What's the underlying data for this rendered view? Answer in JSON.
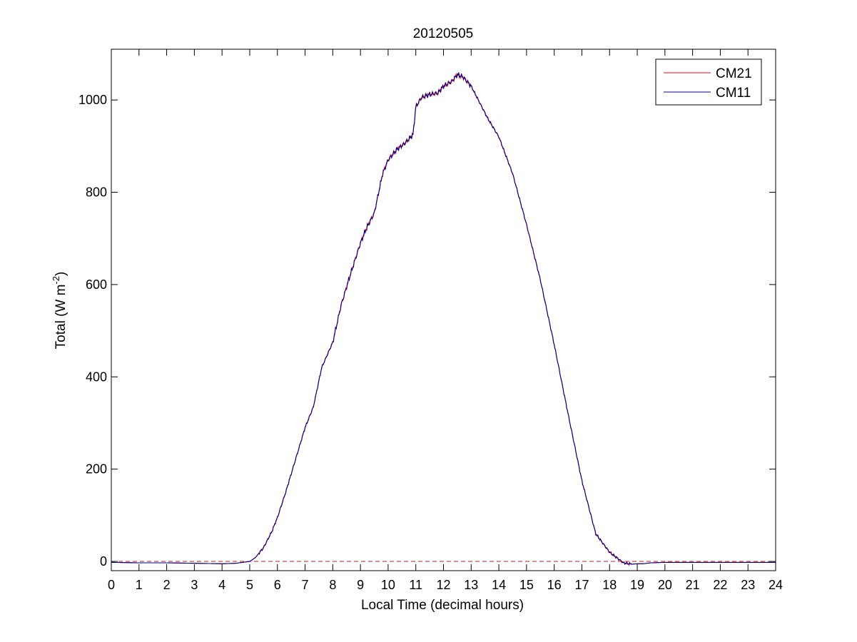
{
  "chart_data": {
    "type": "line",
    "title": "20120505",
    "xlabel": "Local Time (decimal hours)",
    "ylabel": {
      "main": "Total (W m",
      "sup": "-2",
      "close": ")"
    },
    "xlim": [
      0,
      24
    ],
    "ylim": [
      -20,
      1110
    ],
    "xticks": [
      0,
      1,
      2,
      3,
      4,
      5,
      6,
      7,
      8,
      9,
      10,
      11,
      12,
      13,
      14,
      15,
      16,
      17,
      18,
      19,
      20,
      21,
      22,
      23,
      24
    ],
    "yticks": [
      0,
      200,
      400,
      600,
      800,
      1000
    ],
    "grid": false,
    "legend_position": "top-right",
    "zero_line": {
      "y": 0,
      "style": "dashed",
      "color": "#b22222"
    },
    "series": [
      {
        "name": "CM21",
        "color": "#ff0000",
        "x": [
          0,
          1,
          2,
          3,
          4,
          4.5,
          5,
          5.2,
          5.5,
          5.8,
          6,
          6.3,
          6.6,
          7,
          7.3,
          7.6,
          8,
          8.3,
          8.6,
          9,
          9.2,
          9.5,
          9.8,
          10,
          10.3,
          10.6,
          10.9,
          11,
          11.2,
          11.5,
          11.8,
          12,
          12.3,
          12.5,
          12.7,
          13,
          13.3,
          13.6,
          14,
          14.5,
          15,
          15.5,
          16,
          16.5,
          17,
          17.5,
          18,
          18.5,
          18.8,
          19,
          19.2,
          19.5,
          20,
          21,
          22,
          23,
          24
        ],
        "y": [
          -2,
          -3,
          -3,
          -4,
          -5,
          -4,
          0,
          8,
          30,
          65,
          95,
          150,
          210,
          290,
          335,
          420,
          475,
          555,
          615,
          690,
          720,
          755,
          840,
          870,
          892,
          906,
          925,
          985,
          1005,
          1012,
          1015,
          1030,
          1040,
          1055,
          1050,
          1030,
          995,
          960,
          920,
          840,
          730,
          610,
          470,
          320,
          175,
          60,
          20,
          -3,
          -6,
          -5,
          -5,
          -3,
          -2,
          -2,
          -2,
          -2,
          -2
        ],
        "note": ""
      },
      {
        "name": "CM11",
        "color": "#00008b",
        "x": [
          0,
          1,
          2,
          3,
          4,
          4.5,
          5,
          5.2,
          5.5,
          5.8,
          6,
          6.3,
          6.6,
          7,
          7.3,
          7.6,
          8,
          8.3,
          8.6,
          9,
          9.2,
          9.5,
          9.8,
          10,
          10.3,
          10.6,
          10.9,
          11,
          11.2,
          11.5,
          11.8,
          12,
          12.3,
          12.5,
          12.7,
          13,
          13.3,
          13.6,
          14,
          14.5,
          15,
          15.5,
          16,
          16.5,
          17,
          17.5,
          18,
          18.5,
          18.8,
          19,
          19.2,
          19.5,
          20,
          21,
          22,
          23,
          24
        ],
        "y": [
          -2,
          -3,
          -3,
          -4,
          -5,
          -4,
          0,
          8,
          30,
          65,
          95,
          150,
          210,
          290,
          335,
          420,
          475,
          555,
          615,
          690,
          720,
          755,
          840,
          870,
          892,
          906,
          925,
          985,
          1005,
          1012,
          1015,
          1030,
          1040,
          1055,
          1050,
          1030,
          995,
          960,
          920,
          840,
          730,
          610,
          470,
          320,
          175,
          60,
          20,
          -3,
          -6,
          -5,
          -5,
          -3,
          -2,
          -2,
          -2,
          -2,
          -2
        ],
        "note": ""
      }
    ]
  }
}
